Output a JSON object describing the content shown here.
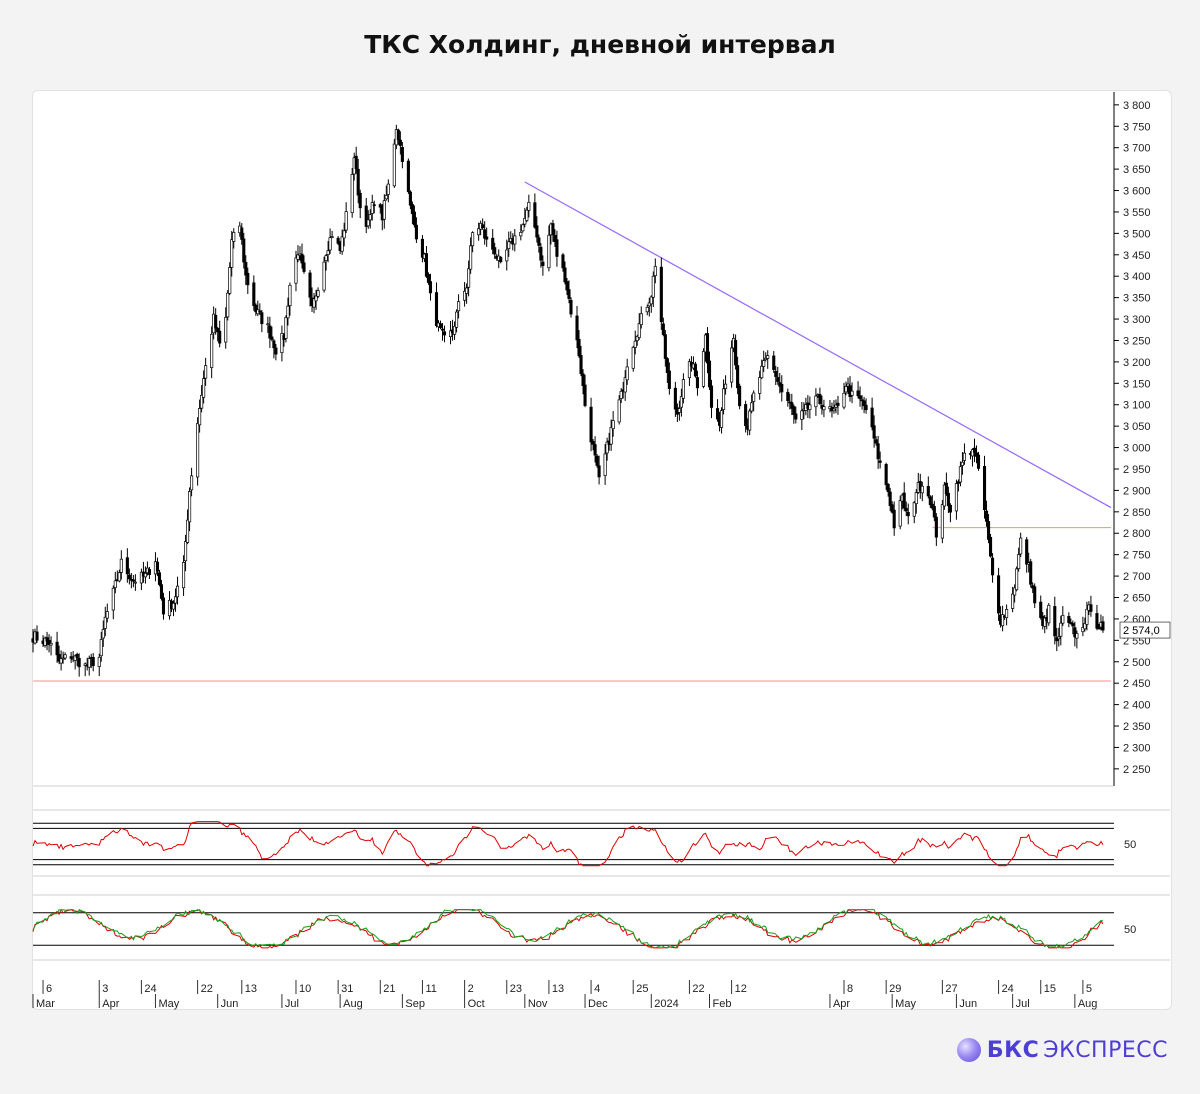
{
  "title": "ТКС Холдинг, дневной интервал",
  "brand": {
    "strong": "БКС",
    "light": "ЭКСПРЕСС",
    "logo_icon": "sphere-logo-icon"
  },
  "chart_data": {
    "type": "candlestick",
    "price_axis": {
      "ylim": [
        2210,
        3830
      ],
      "ticks": [
        "3 800",
        "3 750",
        "3 700",
        "3 650",
        "3 600",
        "3 550",
        "3 500",
        "3 450",
        "3 400",
        "3 350",
        "3 300",
        "3 250",
        "3 200",
        "3 150",
        "3 100",
        "3 050",
        "3 000",
        "2 950",
        "2 900",
        "2 850",
        "2 800",
        "2 750",
        "2 700",
        "2 650",
        "2 600",
        "2 550",
        "2 500",
        "2 450",
        "2 400",
        "2 350",
        "2 300",
        "2 250"
      ],
      "tick_values": [
        3800,
        3750,
        3700,
        3650,
        3600,
        3550,
        3500,
        3450,
        3400,
        3350,
        3300,
        3250,
        3200,
        3150,
        3100,
        3050,
        3000,
        2950,
        2900,
        2850,
        2800,
        2750,
        2700,
        2650,
        2600,
        2550,
        2500,
        2450,
        2400,
        2350,
        2300,
        2250
      ]
    },
    "last_price": {
      "label": "2 574,0",
      "value": 2574
    },
    "x_axis": {
      "range": [
        "2023-03-01",
        "2024-08-20"
      ],
      "day_labels": [
        {
          "text": "6",
          "date": "2023-03-06"
        },
        {
          "text": "3",
          "date": "2023-04-03"
        },
        {
          "text": "24",
          "date": "2023-04-24"
        },
        {
          "text": "22",
          "date": "2023-05-22"
        },
        {
          "text": "13",
          "date": "2023-06-13"
        },
        {
          "text": "10",
          "date": "2023-07-10"
        },
        {
          "text": "31",
          "date": "2023-07-31"
        },
        {
          "text": "21",
          "date": "2023-08-21"
        },
        {
          "text": "11",
          "date": "2023-09-11"
        },
        {
          "text": "2",
          "date": "2023-10-02"
        },
        {
          "text": "23",
          "date": "2023-10-23"
        },
        {
          "text": "13",
          "date": "2023-11-13"
        },
        {
          "text": "4",
          "date": "2023-12-04"
        },
        {
          "text": "25",
          "date": "2023-12-25"
        },
        {
          "text": "22",
          "date": "2024-01-22"
        },
        {
          "text": "12",
          "date": "2024-02-12"
        },
        {
          "text": "8",
          "date": "2024-04-08"
        },
        {
          "text": "29",
          "date": "2024-04-29"
        },
        {
          "text": "27",
          "date": "2024-05-27"
        },
        {
          "text": "24",
          "date": "2024-06-24"
        },
        {
          "text": "15",
          "date": "2024-07-15"
        },
        {
          "text": "5",
          "date": "2024-08-05"
        }
      ],
      "month_labels": [
        {
          "text": "Mar",
          "date": "2023-03-01"
        },
        {
          "text": "Apr",
          "date": "2023-04-03"
        },
        {
          "text": "May",
          "date": "2023-05-01"
        },
        {
          "text": "Jun",
          "date": "2023-06-01"
        },
        {
          "text": "Jul",
          "date": "2023-07-03"
        },
        {
          "text": "Aug",
          "date": "2023-08-01"
        },
        {
          "text": "Sep",
          "date": "2023-09-01"
        },
        {
          "text": "Oct",
          "date": "2023-10-02"
        },
        {
          "text": "Nov",
          "date": "2023-11-01"
        },
        {
          "text": "Dec",
          "date": "2023-12-01"
        },
        {
          "text": "2024",
          "date": "2024-01-03"
        },
        {
          "text": "Feb",
          "date": "2024-02-01"
        },
        {
          "text": "Apr",
          "date": "2024-04-01"
        },
        {
          "text": "May",
          "date": "2024-05-02"
        },
        {
          "text": "Jun",
          "date": "2024-06-03"
        },
        {
          "text": "Jul",
          "date": "2024-07-01"
        },
        {
          "text": "Aug",
          "date": "2024-08-01"
        }
      ]
    },
    "price_anchors": [
      [
        "2023-03-01",
        2560
      ],
      [
        "2023-03-09",
        2545
      ],
      [
        "2023-03-14",
        2500
      ],
      [
        "2023-03-20",
        2515
      ],
      [
        "2023-03-27",
        2490
      ],
      [
        "2023-04-03",
        2510
      ],
      [
        "2023-04-06",
        2600
      ],
      [
        "2023-04-10",
        2660
      ],
      [
        "2023-04-14",
        2730
      ],
      [
        "2023-04-20",
        2690
      ],
      [
        "2023-04-26",
        2700
      ],
      [
        "2023-05-01",
        2740
      ],
      [
        "2023-05-05",
        2620
      ],
      [
        "2023-05-10",
        2640
      ],
      [
        "2023-05-15",
        2720
      ],
      [
        "2023-05-18",
        2900
      ],
      [
        "2023-05-22",
        3060
      ],
      [
        "2023-05-25",
        3160
      ],
      [
        "2023-05-30",
        3300
      ],
      [
        "2023-06-02",
        3240
      ],
      [
        "2023-06-05",
        3300
      ],
      [
        "2023-06-08",
        3480
      ],
      [
        "2023-06-12",
        3520
      ],
      [
        "2023-06-15",
        3400
      ],
      [
        "2023-06-20",
        3320
      ],
      [
        "2023-06-26",
        3280
      ],
      [
        "2023-06-30",
        3230
      ],
      [
        "2023-07-04",
        3260
      ],
      [
        "2023-07-07",
        3380
      ],
      [
        "2023-07-11",
        3460
      ],
      [
        "2023-07-14",
        3400
      ],
      [
        "2023-07-18",
        3320
      ],
      [
        "2023-07-21",
        3380
      ],
      [
        "2023-07-25",
        3460
      ],
      [
        "2023-07-28",
        3500
      ],
      [
        "2023-08-01",
        3460
      ],
      [
        "2023-08-04",
        3540
      ],
      [
        "2023-08-08",
        3680
      ],
      [
        "2023-08-11",
        3560
      ],
      [
        "2023-08-15",
        3520
      ],
      [
        "2023-08-18",
        3580
      ],
      [
        "2023-08-22",
        3540
      ],
      [
        "2023-08-25",
        3610
      ],
      [
        "2023-08-29",
        3750
      ],
      [
        "2023-09-01",
        3680
      ],
      [
        "2023-09-05",
        3560
      ],
      [
        "2023-09-08",
        3500
      ],
      [
        "2023-09-12",
        3440
      ],
      [
        "2023-09-15",
        3350
      ],
      [
        "2023-09-19",
        3280
      ],
      [
        "2023-09-22",
        3250
      ],
      [
        "2023-09-26",
        3270
      ],
      [
        "2023-09-29",
        3330
      ],
      [
        "2023-10-03",
        3380
      ],
      [
        "2023-10-06",
        3500
      ],
      [
        "2023-10-10",
        3520
      ],
      [
        "2023-10-13",
        3480
      ],
      [
        "2023-10-17",
        3460
      ],
      [
        "2023-10-20",
        3420
      ],
      [
        "2023-10-24",
        3470
      ],
      [
        "2023-10-27",
        3490
      ],
      [
        "2023-10-31",
        3520
      ],
      [
        "2023-11-03",
        3560
      ],
      [
        "2023-11-07",
        3500
      ],
      [
        "2023-11-10",
        3420
      ],
      [
        "2023-11-14",
        3520
      ],
      [
        "2023-11-17",
        3450
      ],
      [
        "2023-11-21",
        3400
      ],
      [
        "2023-11-24",
        3320
      ],
      [
        "2023-11-28",
        3220
      ],
      [
        "2023-12-01",
        3100
      ],
      [
        "2023-12-05",
        3000
      ],
      [
        "2023-12-08",
        2920
      ],
      [
        "2023-12-12",
        3000
      ],
      [
        "2023-12-15",
        3060
      ],
      [
        "2023-12-19",
        3120
      ],
      [
        "2023-12-22",
        3200
      ],
      [
        "2023-12-26",
        3260
      ],
      [
        "2023-12-29",
        3300
      ],
      [
        "2024-01-03",
        3360
      ],
      [
        "2024-01-05",
        3430
      ],
      [
        "2024-01-09",
        3250
      ],
      [
        "2024-01-12",
        3130
      ],
      [
        "2024-01-16",
        3080
      ],
      [
        "2024-01-19",
        3150
      ],
      [
        "2024-01-23",
        3200
      ],
      [
        "2024-01-26",
        3150
      ],
      [
        "2024-01-30",
        3260
      ],
      [
        "2024-02-02",
        3100
      ],
      [
        "2024-02-06",
        3050
      ],
      [
        "2024-02-09",
        3160
      ],
      [
        "2024-02-13",
        3260
      ],
      [
        "2024-02-16",
        3100
      ],
      [
        "2024-02-20",
        3050
      ],
      [
        "2024-02-23",
        3120
      ],
      [
        "2024-02-27",
        3180
      ],
      [
        "2024-03-01",
        3210
      ],
      [
        "2024-03-05",
        3170
      ],
      [
        "2024-03-08",
        3130
      ],
      [
        "2024-03-12",
        3100
      ],
      [
        "2024-03-15",
        3060
      ],
      [
        "2024-03-19",
        3080
      ],
      [
        "2024-03-22",
        3100
      ],
      [
        "2024-03-26",
        3110
      ],
      [
        "2024-03-29",
        3100
      ],
      [
        "2024-04-02",
        3080
      ],
      [
        "2024-04-05",
        3090
      ],
      [
        "2024-04-09",
        3150
      ],
      [
        "2024-04-12",
        3120
      ],
      [
        "2024-04-16",
        3110
      ],
      [
        "2024-04-19",
        3090
      ],
      [
        "2024-04-23",
        3020
      ],
      [
        "2024-04-26",
        2960
      ],
      [
        "2024-04-30",
        2900
      ],
      [
        "2024-05-03",
        2820
      ],
      [
        "2024-05-07",
        2880
      ],
      [
        "2024-05-10",
        2830
      ],
      [
        "2024-05-14",
        2900
      ],
      [
        "2024-05-17",
        2920
      ],
      [
        "2024-05-21",
        2880
      ],
      [
        "2024-05-24",
        2800
      ],
      [
        "2024-05-28",
        2900
      ],
      [
        "2024-05-31",
        2860
      ],
      [
        "2024-06-04",
        2930
      ],
      [
        "2024-06-07",
        2980
      ],
      [
        "2024-06-11",
        3000
      ],
      [
        "2024-06-14",
        2950
      ],
      [
        "2024-06-18",
        2820
      ],
      [
        "2024-06-21",
        2700
      ],
      [
        "2024-06-25",
        2600
      ],
      [
        "2024-06-28",
        2620
      ],
      [
        "2024-07-02",
        2680
      ],
      [
        "2024-07-05",
        2780
      ],
      [
        "2024-07-09",
        2720
      ],
      [
        "2024-07-12",
        2640
      ],
      [
        "2024-07-16",
        2580
      ],
      [
        "2024-07-19",
        2620
      ],
      [
        "2024-07-23",
        2540
      ],
      [
        "2024-07-26",
        2600
      ],
      [
        "2024-07-30",
        2580
      ],
      [
        "2024-08-02",
        2560
      ],
      [
        "2024-08-06",
        2600
      ],
      [
        "2024-08-09",
        2630
      ],
      [
        "2024-08-12",
        2590
      ],
      [
        "2024-08-15",
        2574
      ]
    ],
    "trendline": {
      "from": [
        "2023-11-01",
        3620
      ],
      "to": [
        "2024-08-19",
        2860
      ],
      "color": "#9966ff"
    },
    "horizontal_lines": [
      {
        "y": 2455,
        "color": "#ff8888",
        "from": "2023-03-01",
        "to": "2024-08-19"
      },
      {
        "y": 2813,
        "color": "#ff8888",
        "from": "2024-05-22",
        "to": "2024-08-19"
      }
    ],
    "oscillator_1": {
      "label": "50",
      "line_color": "#e00000",
      "guide_levels": [
        90,
        80,
        20,
        10
      ],
      "range": [
        0,
        100
      ]
    },
    "oscillator_2": {
      "label": "50",
      "line_colors": [
        "#e00000",
        "#1a9a1a"
      ],
      "guide_levels": [
        80,
        20
      ],
      "range": [
        0,
        100
      ]
    },
    "colors": {
      "candle": "#000000",
      "grid": "#000000"
    }
  }
}
